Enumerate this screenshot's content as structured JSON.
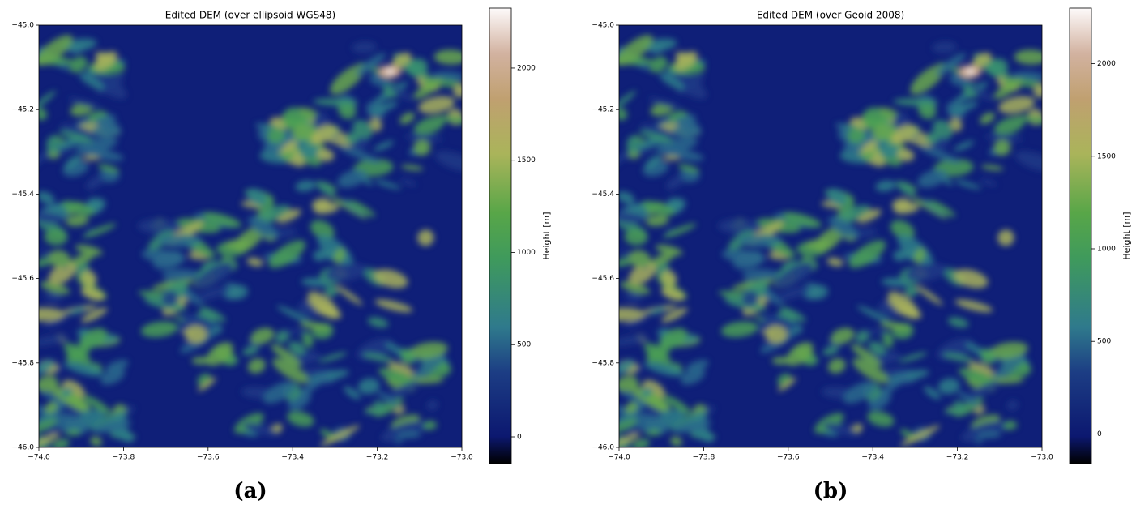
{
  "chart_data": [
    {
      "type": "heatmap",
      "title": "Edited DEM (over ellipsoid WGS48)",
      "caption": "(a)",
      "xlim": [
        -74,
        -73
      ],
      "ylim": [
        -46,
        -45
      ],
      "xticks": [
        {
          "value": -74,
          "label": "−74.0"
        },
        {
          "value": -73.8,
          "label": "−73.8"
        },
        {
          "value": -73.6,
          "label": "−73.6"
        },
        {
          "value": -73.4,
          "label": "−73.4"
        },
        {
          "value": -73.2,
          "label": "−73.2"
        },
        {
          "value": -73,
          "label": "−73.0"
        }
      ],
      "yticks": [
        {
          "value": -45,
          "label": "−45.0"
        },
        {
          "value": -45.2,
          "label": "−45.2"
        },
        {
          "value": -45.4,
          "label": "−45.4"
        },
        {
          "value": -45.6,
          "label": "−45.6"
        },
        {
          "value": -45.8,
          "label": "−45.8"
        },
        {
          "value": -46,
          "label": "−46.0"
        }
      ],
      "colorbar": {
        "label": "Height [m]",
        "lim": [
          -145,
          2325
        ],
        "ticks": [
          0,
          500,
          1000,
          1500,
          2000
        ]
      }
    },
    {
      "type": "heatmap",
      "title": "Edited DEM (over Geoid 2008)",
      "caption": "(b)",
      "xlim": [
        -74,
        -73
      ],
      "ylim": [
        -46,
        -45
      ],
      "xticks": [
        {
          "value": -74,
          "label": "−74.0"
        },
        {
          "value": -73.8,
          "label": "−73.8"
        },
        {
          "value": -73.6,
          "label": "−73.6"
        },
        {
          "value": -73.4,
          "label": "−73.4"
        },
        {
          "value": -73.2,
          "label": "−73.2"
        },
        {
          "value": -73,
          "label": "−73.0"
        }
      ],
      "yticks": [
        {
          "value": -45,
          "label": "−45.0"
        },
        {
          "value": -45.2,
          "label": "−45.2"
        },
        {
          "value": -45.4,
          "label": "−45.4"
        },
        {
          "value": -45.6,
          "label": "−45.6"
        },
        {
          "value": -45.8,
          "label": "−45.8"
        },
        {
          "value": -46,
          "label": "−46.0"
        }
      ],
      "colorbar": {
        "label": "Height [m]",
        "lim": [
          -160,
          2300
        ],
        "ticks": [
          0,
          500,
          1000,
          1500,
          2000
        ]
      }
    }
  ]
}
